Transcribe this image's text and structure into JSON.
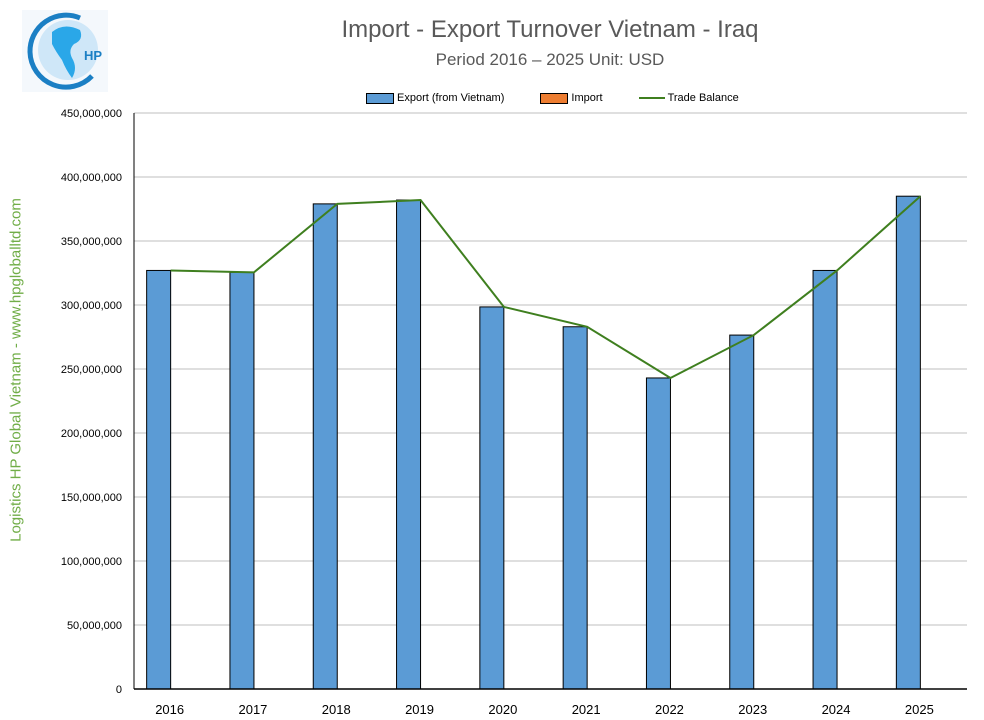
{
  "header": {
    "title": "Import - Export Turnover Vietnam - Iraq",
    "subtitle": "Period 2016 – 2025  Unit: USD",
    "logo_text": "HP"
  },
  "watermark": "Logistics HP Global Vietnam - www.hpgloballtd.com",
  "legend": [
    {
      "label": "Export (from Vietnam)",
      "type": "box",
      "color": "#5b9bd5"
    },
    {
      "label": "Import",
      "type": "box",
      "color": "#ed7d31"
    },
    {
      "label": "Trade Balance",
      "type": "line",
      "color": "#3f7f1f"
    }
  ],
  "chart_data": {
    "type": "bar",
    "title": "Import - Export Turnover Vietnam - Iraq",
    "subtitle": "Period 2016 – 2025  Unit: USD",
    "xlabel": "",
    "ylabel": "",
    "ylim": [
      0,
      450000000
    ],
    "ytick_step": 50000000,
    "ytick_labels": [
      "0",
      "50,000,000",
      "100,000,000",
      "150,000,000",
      "200,000,000",
      "250,000,000",
      "300,000,000",
      "350,000,000",
      "400,000,000",
      "450,000,000"
    ],
    "grid": true,
    "legend_position": "top",
    "categories": [
      "2016",
      "2017",
      "2018",
      "2019",
      "2020",
      "2021",
      "2022",
      "2023",
      "2024",
      "2025"
    ],
    "series": [
      {
        "name": "Export (from Vietnam)",
        "type": "bar",
        "color": "#5b9bd5",
        "values": [
          327000000,
          325500000,
          379000000,
          382000000,
          298500000,
          283000000,
          243000000,
          276500000,
          327000000,
          385000000
        ]
      },
      {
        "name": "Import",
        "type": "bar",
        "color": "#ed7d31",
        "values": [
          0,
          0,
          0,
          0,
          0,
          0,
          0,
          0,
          0,
          0
        ]
      },
      {
        "name": "Trade Balance",
        "type": "line",
        "color": "#3f7f1f",
        "values": [
          327000000,
          325500000,
          379000000,
          382000000,
          298500000,
          283000000,
          243000000,
          276500000,
          327000000,
          385000000
        ]
      }
    ]
  }
}
